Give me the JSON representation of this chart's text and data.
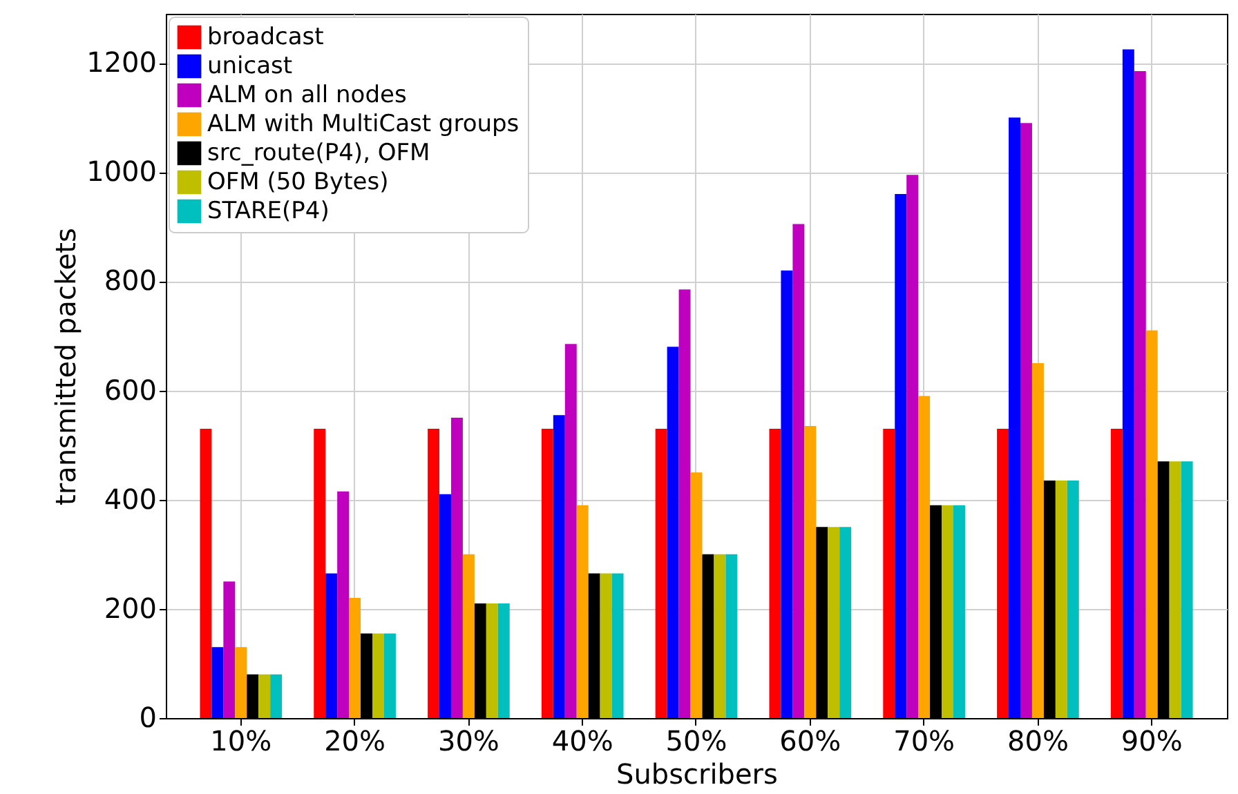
{
  "chart_data": {
    "type": "bar",
    "xlabel": "Subscribers",
    "ylabel": "transmitted packets",
    "categories": [
      "10%",
      "20%",
      "30%",
      "40%",
      "50%",
      "60%",
      "70%",
      "80%",
      "90%"
    ],
    "series": [
      {
        "name": "broadcast",
        "color": "#ff0000",
        "values": [
          530,
          530,
          530,
          530,
          530,
          530,
          530,
          530,
          530
        ]
      },
      {
        "name": "unicast",
        "color": "#0000ff",
        "values": [
          130,
          265,
          410,
          555,
          680,
          820,
          960,
          1100,
          1225
        ]
      },
      {
        "name": "ALM on all nodes",
        "color": "#bf00bf",
        "values": [
          250,
          415,
          550,
          685,
          785,
          905,
          995,
          1090,
          1185
        ]
      },
      {
        "name": "ALM with MultiCast groups",
        "color": "#ffa500",
        "values": [
          130,
          220,
          300,
          390,
          450,
          535,
          590,
          650,
          710
        ]
      },
      {
        "name": "src_route(P4), OFM",
        "color": "#000000",
        "values": [
          80,
          155,
          210,
          265,
          300,
          350,
          390,
          435,
          470
        ]
      },
      {
        "name": "OFM (50 Bytes)",
        "color": "#bfbf00",
        "values": [
          80,
          155,
          210,
          265,
          300,
          350,
          390,
          435,
          470
        ]
      },
      {
        "name": "STARE(P4)",
        "color": "#00bfbf",
        "values": [
          80,
          155,
          210,
          265,
          300,
          350,
          390,
          435,
          470
        ]
      }
    ],
    "ylim": [
      0,
      1290
    ],
    "yticks": [
      0,
      200,
      400,
      600,
      800,
      1000,
      1200
    ],
    "grid": true,
    "legend": "top left"
  }
}
